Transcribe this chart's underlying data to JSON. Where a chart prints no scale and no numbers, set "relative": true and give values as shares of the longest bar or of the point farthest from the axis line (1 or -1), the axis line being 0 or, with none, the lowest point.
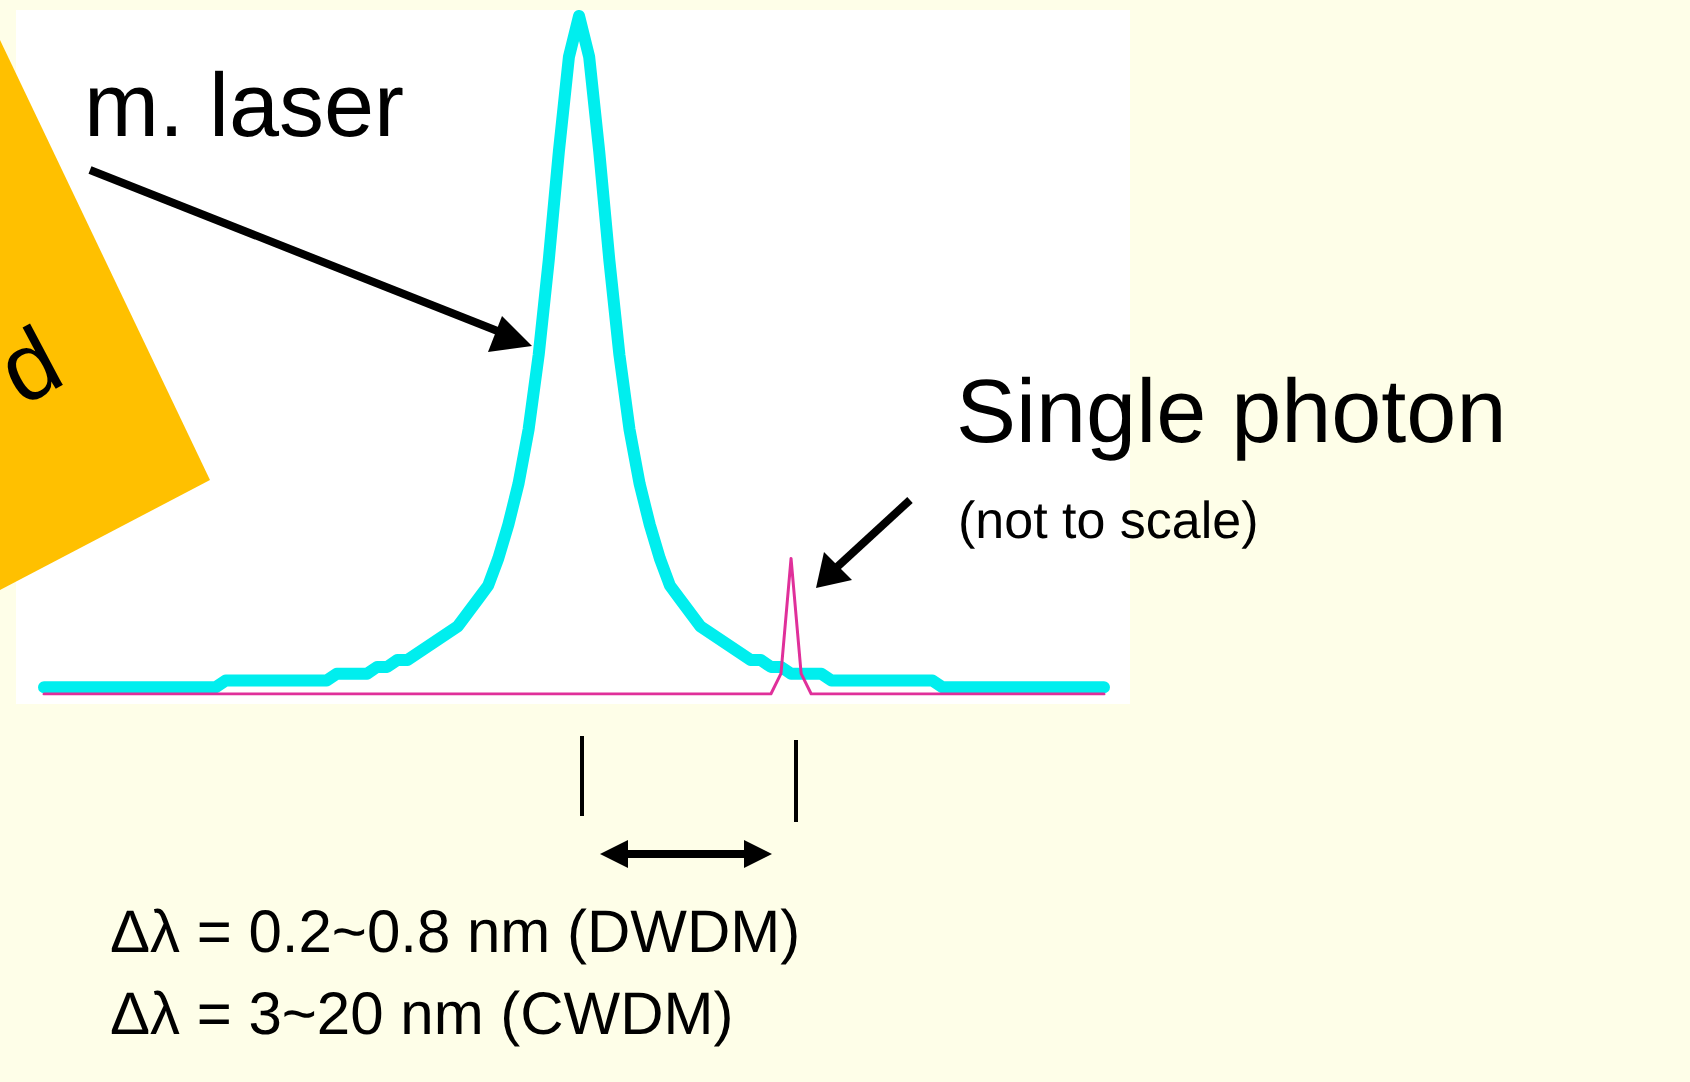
{
  "chart_data": {
    "type": "line",
    "relative": true,
    "grid": false,
    "categories": [
      null,
      null,
      null,
      null,
      null,
      null,
      null,
      null,
      null,
      null,
      null,
      null,
      null,
      null,
      null,
      null,
      null,
      null,
      null,
      null,
      null,
      null,
      null,
      null,
      null,
      null,
      null,
      null,
      null,
      null,
      null,
      null,
      null,
      null,
      null,
      null,
      null,
      null,
      null,
      null,
      null,
      null,
      null,
      null,
      null,
      null,
      null,
      null,
      null,
      null,
      null,
      null,
      null,
      null,
      null,
      null,
      null,
      null,
      null,
      null,
      null,
      null,
      null,
      null,
      null,
      null,
      null,
      null,
      null,
      null,
      null,
      null,
      null,
      null,
      null,
      null,
      null,
      null,
      null,
      null,
      null,
      null,
      null,
      null,
      null,
      null,
      null,
      null,
      null,
      null,
      null,
      null,
      null,
      null,
      null,
      null,
      null,
      null,
      null,
      null,
      null,
      null,
      null,
      null,
      null,
      null
    ],
    "series": [
      {
        "color": "#00eeee",
        "values": [
          0.01,
          0.01,
          0.01,
          0.01,
          0.01,
          0.01,
          0.01,
          0.01,
          0.01,
          0.01,
          0.01,
          0.01,
          0.01,
          0.01,
          0.01,
          0.01,
          0.01,
          0.01,
          0.02,
          0.02,
          0.02,
          0.02,
          0.02,
          0.02,
          0.02,
          0.02,
          0.02,
          0.02,
          0.02,
          0.03,
          0.03,
          0.03,
          0.03,
          0.04,
          0.04,
          0.05,
          0.05,
          0.06,
          0.07,
          0.08,
          0.09,
          0.1,
          0.12,
          0.14,
          0.16,
          0.2,
          0.25,
          0.31,
          0.39,
          0.5,
          0.64,
          0.8,
          0.94,
          1,
          0.94,
          0.8,
          0.64,
          0.5,
          0.39,
          0.31,
          0.25,
          0.2,
          0.16,
          0.14,
          0.12,
          0.1,
          0.09,
          0.08,
          0.07,
          0.06,
          0.05,
          0.05,
          0.04,
          0.04,
          0.03,
          0.03,
          0.03,
          0.03,
          0.02,
          0.02,
          0.02,
          0.02,
          0.02,
          0.02,
          0.02,
          0.02,
          0.02,
          0.02,
          0.02,
          0.01,
          0.01,
          0.01,
          0.01,
          0.01,
          0.01,
          0.01,
          0.01,
          0.01,
          0.01,
          0.01,
          0.01,
          0.01,
          0.01,
          0.01,
          0.01,
          0.01
        ]
      },
      {
        "color": "#e0309a",
        "values": [
          0,
          0,
          0,
          0,
          0,
          0,
          0,
          0,
          0,
          0,
          0,
          0,
          0,
          0,
          0,
          0,
          0,
          0,
          0,
          0,
          0,
          0,
          0,
          0,
          0,
          0,
          0,
          0,
          0,
          0,
          0,
          0,
          0,
          0,
          0,
          0,
          0,
          0,
          0,
          0,
          0,
          0,
          0,
          0,
          0,
          0,
          0,
          0,
          0,
          0,
          0,
          0,
          0,
          0,
          0,
          0,
          0,
          0,
          0,
          0,
          0,
          0,
          0,
          0,
          0,
          0,
          0,
          0,
          0,
          0,
          0,
          0,
          0,
          0.03,
          0.2,
          0.03,
          0,
          0,
          0,
          0,
          0,
          0,
          0,
          0,
          0,
          0,
          0,
          0,
          0,
          0,
          0,
          0,
          0,
          0,
          0,
          0,
          0,
          0,
          0,
          0,
          0,
          0,
          0,
          0,
          0,
          0
        ]
      }
    ],
    "annotations": [
      "m. laser",
      "d",
      "Single photon",
      "(not to scale)",
      "Δλ = 0.2~0.8 nm (DWDM)",
      "Δλ = 3~20 nm (CWDM)"
    ]
  }
}
